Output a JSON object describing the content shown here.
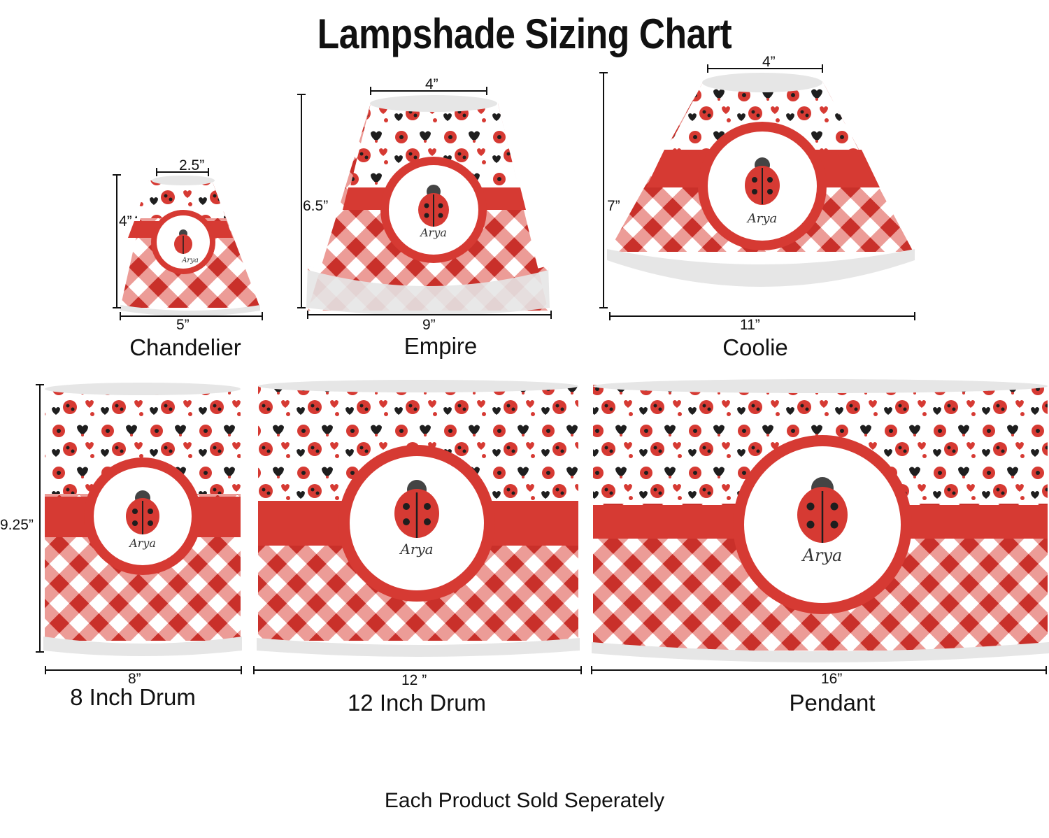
{
  "title": "Lampshade Sizing Chart",
  "footer": "Each Product Sold Seperately",
  "personalization": "Arya",
  "colors": {
    "red": "#d63a33",
    "dark_red": "#b8241f",
    "black": "#1e1e1e",
    "rim": "#e6e6e6",
    "pattern_bg": "#ffffff"
  },
  "shades": [
    {
      "id": "chandelier",
      "name": "Chandelier",
      "top": "2.5”",
      "height": "4”",
      "bottom": "5”"
    },
    {
      "id": "empire",
      "name": "Empire",
      "top": "4”",
      "height": "6.5”",
      "bottom": "9”"
    },
    {
      "id": "coolie",
      "name": "Coolie",
      "top": "4”",
      "height": "7”",
      "bottom": "11”"
    },
    {
      "id": "drum8",
      "name": "8 Inch Drum",
      "height": "9.25”",
      "bottom": "8”"
    },
    {
      "id": "drum12",
      "name": "12 Inch Drum",
      "bottom": "12 ”"
    },
    {
      "id": "pendant",
      "name": "Pendant",
      "bottom": "16”"
    }
  ]
}
